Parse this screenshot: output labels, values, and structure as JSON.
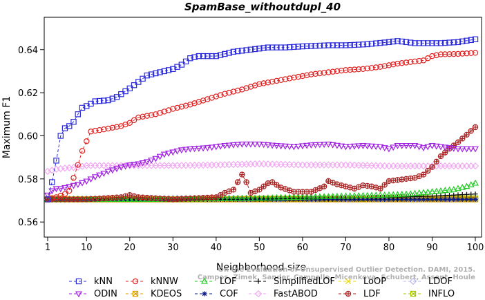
{
  "chart_data": {
    "type": "line",
    "title": "SpamBase_withoutdupl_40",
    "xlabel": "Neighborhood size",
    "ylabel": "Maximum F1",
    "xlim": [
      1,
      100
    ],
    "ylim": [
      0.553,
      0.655
    ],
    "xticks": [
      1,
      10,
      20,
      30,
      40,
      50,
      60,
      70,
      80,
      90,
      100
    ],
    "yticks": [
      0.56,
      0.58,
      0.6,
      0.62,
      0.64
    ],
    "ytick_labels": [
      "0.56",
      "0.58",
      "0.60",
      "0.62",
      "0.64"
    ],
    "grid": false,
    "legend_position": "bottom",
    "watermark": [
      "Campos, Zimek, Sander, Campello, Micenkova, Schubert, Assent, Houle",
      "On the Evaluation of Unsupervised Outlier Detection. DAMI, 2015."
    ],
    "series": [
      {
        "name": "kNN",
        "color": "#2b2bd9",
        "marker": "square",
        "dash": "4 3",
        "points": [
          [
            1,
            0.5705
          ],
          [
            2,
            0.5785
          ],
          [
            3,
            0.5885
          ],
          [
            4,
            0.6
          ],
          [
            5,
            0.6035
          ],
          [
            6,
            0.6045
          ],
          [
            7,
            0.6065
          ],
          [
            8,
            0.61
          ],
          [
            9,
            0.613
          ],
          [
            10,
            0.6138
          ],
          [
            12,
            0.616
          ],
          [
            15,
            0.6165
          ],
          [
            17,
            0.618
          ],
          [
            20,
            0.622
          ],
          [
            22,
            0.625
          ],
          [
            24,
            0.628
          ],
          [
            26,
            0.629
          ],
          [
            30,
            0.631
          ],
          [
            32,
            0.633
          ],
          [
            34,
            0.636
          ],
          [
            36,
            0.637
          ],
          [
            40,
            0.637
          ],
          [
            44,
            0.639
          ],
          [
            48,
            0.64
          ],
          [
            52,
            0.641
          ],
          [
            56,
            0.641
          ],
          [
            60,
            0.6415
          ],
          [
            66,
            0.642
          ],
          [
            70,
            0.642
          ],
          [
            75,
            0.6425
          ],
          [
            80,
            0.6435
          ],
          [
            82,
            0.644
          ],
          [
            86,
            0.643
          ],
          [
            88,
            0.643
          ],
          [
            92,
            0.643
          ],
          [
            96,
            0.6435
          ],
          [
            100,
            0.6448
          ]
        ]
      },
      {
        "name": "kNNW",
        "color": "#e02020",
        "marker": "circle",
        "dash": "4 3",
        "points": [
          [
            1,
            0.5705
          ],
          [
            3,
            0.5715
          ],
          [
            5,
            0.573
          ],
          [
            6,
            0.5745
          ],
          [
            7,
            0.5805
          ],
          [
            8,
            0.5865
          ],
          [
            9,
            0.593
          ],
          [
            10,
            0.5975
          ],
          [
            11,
            0.602
          ],
          [
            14,
            0.603
          ],
          [
            18,
            0.6045
          ],
          [
            20,
            0.606
          ],
          [
            22,
            0.6085
          ],
          [
            26,
            0.61
          ],
          [
            30,
            0.6125
          ],
          [
            34,
            0.6145
          ],
          [
            38,
            0.617
          ],
          [
            42,
            0.6195
          ],
          [
            46,
            0.6215
          ],
          [
            50,
            0.624
          ],
          [
            54,
            0.6255
          ],
          [
            58,
            0.627
          ],
          [
            62,
            0.6285
          ],
          [
            66,
            0.6295
          ],
          [
            70,
            0.6305
          ],
          [
            74,
            0.631
          ],
          [
            78,
            0.632
          ],
          [
            82,
            0.6335
          ],
          [
            86,
            0.6345
          ],
          [
            88,
            0.635
          ],
          [
            90,
            0.637
          ],
          [
            92,
            0.6378
          ],
          [
            96,
            0.638
          ],
          [
            100,
            0.6385
          ]
        ]
      },
      {
        "name": "LOF",
        "color": "#22c922",
        "marker": "triangle-up",
        "dash": "4 3",
        "points": [
          [
            1,
            0.5705
          ],
          [
            10,
            0.5705
          ],
          [
            20,
            0.5705
          ],
          [
            30,
            0.5705
          ],
          [
            40,
            0.5708
          ],
          [
            50,
            0.571
          ],
          [
            60,
            0.5715
          ],
          [
            70,
            0.572
          ],
          [
            80,
            0.5725
          ],
          [
            85,
            0.573
          ],
          [
            90,
            0.574
          ],
          [
            95,
            0.575
          ],
          [
            98,
            0.5765
          ],
          [
            100,
            0.578
          ]
        ]
      },
      {
        "name": "SimplifiedLOF",
        "color": "#000000",
        "marker": "plus",
        "dash": "4 3",
        "points": [
          [
            1,
            0.5705
          ],
          [
            20,
            0.5705
          ],
          [
            40,
            0.5705
          ],
          [
            50,
            0.5708
          ],
          [
            60,
            0.571
          ],
          [
            70,
            0.5712
          ],
          [
            80,
            0.5715
          ],
          [
            90,
            0.572
          ],
          [
            100,
            0.573
          ]
        ]
      },
      {
        "name": "LoOP",
        "color": "#e8d800",
        "marker": "x",
        "dash": "4 3",
        "points": [
          [
            1,
            0.5705
          ],
          [
            10,
            0.5705
          ],
          [
            20,
            0.5705
          ],
          [
            30,
            0.5705
          ],
          [
            40,
            0.5705
          ],
          [
            50,
            0.5705
          ],
          [
            60,
            0.5705
          ],
          [
            70,
            0.5705
          ],
          [
            80,
            0.5705
          ],
          [
            90,
            0.5705
          ],
          [
            100,
            0.5705
          ]
        ]
      },
      {
        "name": "LDOF",
        "color": "#b8b8ee",
        "marker": "diamond",
        "dash": "4 3",
        "points": [
          [
            1,
            0.5705
          ],
          [
            5,
            0.5705
          ],
          [
            10,
            0.5708
          ],
          [
            20,
            0.5708
          ],
          [
            30,
            0.571
          ],
          [
            40,
            0.571
          ],
          [
            50,
            0.571
          ],
          [
            60,
            0.5708
          ],
          [
            70,
            0.5708
          ],
          [
            80,
            0.5708
          ],
          [
            90,
            0.5708
          ],
          [
            100,
            0.5708
          ]
        ]
      },
      {
        "name": "ODIN",
        "color": "#a020e0",
        "marker": "triangle-down",
        "dash": "4 3",
        "points": [
          [
            1,
            0.5725
          ],
          [
            2,
            0.5745
          ],
          [
            3,
            0.5755
          ],
          [
            4,
            0.5755
          ],
          [
            5,
            0.576
          ],
          [
            7,
            0.577
          ],
          [
            8,
            0.5775
          ],
          [
            10,
            0.579
          ],
          [
            12,
            0.581
          ],
          [
            15,
            0.5835
          ],
          [
            18,
            0.5855
          ],
          [
            20,
            0.5865
          ],
          [
            22,
            0.587
          ],
          [
            24,
            0.588
          ],
          [
            26,
            0.5895
          ],
          [
            28,
            0.5915
          ],
          [
            30,
            0.5925
          ],
          [
            32,
            0.5935
          ],
          [
            34,
            0.594
          ],
          [
            38,
            0.5945
          ],
          [
            42,
            0.5955
          ],
          [
            46,
            0.5962
          ],
          [
            50,
            0.5962
          ],
          [
            54,
            0.5955
          ],
          [
            58,
            0.595
          ],
          [
            62,
            0.5958
          ],
          [
            66,
            0.5962
          ],
          [
            70,
            0.595
          ],
          [
            74,
            0.5955
          ],
          [
            78,
            0.595
          ],
          [
            80,
            0.594
          ],
          [
            82,
            0.5955
          ],
          [
            86,
            0.5955
          ],
          [
            88,
            0.5945
          ],
          [
            90,
            0.5955
          ],
          [
            94,
            0.5945
          ],
          [
            96,
            0.594
          ],
          [
            100,
            0.594
          ]
        ]
      },
      {
        "name": "KDEOS",
        "color": "#e0a000",
        "marker": "square-x",
        "dash": "4 3",
        "points": [
          [
            1,
            0.5705
          ],
          [
            2,
            0.571
          ],
          [
            3,
            0.5705
          ],
          [
            4,
            0.571
          ],
          [
            5,
            0.5705
          ],
          [
            10,
            0.5705
          ],
          [
            20,
            0.5705
          ],
          [
            30,
            0.5705
          ],
          [
            40,
            0.5705
          ],
          [
            50,
            0.5705
          ],
          [
            60,
            0.5705
          ],
          [
            70,
            0.5705
          ],
          [
            80,
            0.5705
          ],
          [
            90,
            0.5705
          ],
          [
            100,
            0.5705
          ]
        ]
      },
      {
        "name": "COF",
        "color": "#0a1a8a",
        "marker": "asterisk",
        "dash": "4 3",
        "points": [
          [
            1,
            0.5705
          ],
          [
            20,
            0.5705
          ],
          [
            40,
            0.5705
          ],
          [
            60,
            0.5705
          ],
          [
            80,
            0.5705
          ],
          [
            100,
            0.5705
          ]
        ]
      },
      {
        "name": "FastABOD",
        "color": "#f0a8f0",
        "marker": "diamond",
        "dash": "4 3",
        "points": [
          [
            1,
            0.5835
          ],
          [
            3,
            0.5845
          ],
          [
            5,
            0.585
          ],
          [
            8,
            0.5855
          ],
          [
            10,
            0.5862
          ],
          [
            15,
            0.5862
          ],
          [
            20,
            0.5862
          ],
          [
            30,
            0.5862
          ],
          [
            40,
            0.5865
          ],
          [
            50,
            0.587
          ],
          [
            60,
            0.5865
          ],
          [
            70,
            0.5865
          ],
          [
            80,
            0.586
          ],
          [
            90,
            0.586
          ],
          [
            100,
            0.586
          ]
        ]
      },
      {
        "name": "LDF",
        "color": "#a82020",
        "marker": "circle-plus",
        "dash": "4 3",
        "points": [
          [
            1,
            0.5705
          ],
          [
            10,
            0.5705
          ],
          [
            18,
            0.5715
          ],
          [
            20,
            0.5725
          ],
          [
            22,
            0.5715
          ],
          [
            30,
            0.5705
          ],
          [
            40,
            0.5715
          ],
          [
            42,
            0.5735
          ],
          [
            44,
            0.575
          ],
          [
            46,
            0.582
          ],
          [
            47,
            0.5785
          ],
          [
            48,
            0.5735
          ],
          [
            50,
            0.575
          ],
          [
            52,
            0.578
          ],
          [
            53,
            0.5785
          ],
          [
            55,
            0.576
          ],
          [
            58,
            0.574
          ],
          [
            62,
            0.574
          ],
          [
            65,
            0.5765
          ],
          [
            66,
            0.579
          ],
          [
            68,
            0.5775
          ],
          [
            70,
            0.5765
          ],
          [
            72,
            0.5755
          ],
          [
            74,
            0.577
          ],
          [
            76,
            0.5765
          ],
          [
            78,
            0.5755
          ],
          [
            80,
            0.579
          ],
          [
            82,
            0.5795
          ],
          [
            84,
            0.58
          ],
          [
            86,
            0.5805
          ],
          [
            88,
            0.582
          ],
          [
            90,
            0.5855
          ],
          [
            92,
            0.5905
          ],
          [
            94,
            0.594
          ],
          [
            96,
            0.597
          ],
          [
            98,
            0.6005
          ],
          [
            100,
            0.604
          ]
        ]
      },
      {
        "name": "INFLO",
        "color": "#a8c800",
        "marker": "square-x",
        "dash": "4 3",
        "points": [
          [
            1,
            0.5705
          ],
          [
            10,
            0.5705
          ],
          [
            20,
            0.5705
          ],
          [
            30,
            0.5705
          ],
          [
            40,
            0.5705
          ],
          [
            50,
            0.5708
          ],
          [
            60,
            0.5708
          ],
          [
            70,
            0.5708
          ],
          [
            80,
            0.571
          ],
          [
            90,
            0.571
          ],
          [
            100,
            0.571
          ]
        ]
      }
    ]
  }
}
